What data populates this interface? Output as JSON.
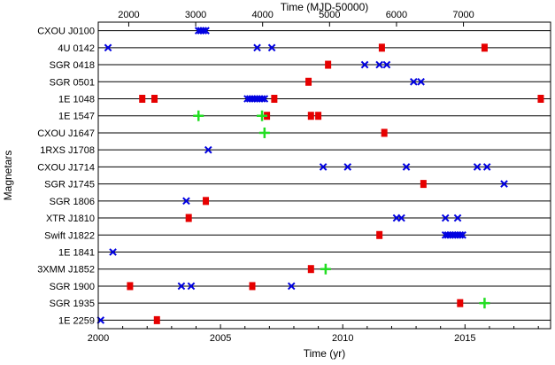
{
  "chart_data": {
    "type": "scatter",
    "xlabel": "Time (yr)",
    "x2label": "Time (MJD-50000)",
    "ylabel": "Magnetars",
    "xlim": [
      2000,
      2018.5
    ],
    "xticks": [
      2000,
      2005,
      2010,
      2015
    ],
    "x2ticks": [
      2000,
      3000,
      4000,
      5000,
      6000,
      7000
    ],
    "grid": "horizontal row lines",
    "categories": [
      "CXOU J0100",
      "4U 0142",
      "SGR 0418",
      "SGR 0501",
      "1E 1048",
      "1E 1547",
      "CXOU J1647",
      "1RXS J1708",
      "CXOU J1714",
      "SGR J1745",
      "SGR 1806",
      "XTR J1810",
      "Swift J1822",
      "1E 1841",
      "3XMM J1852",
      "SGR 1900",
      "SGR 1935",
      "1E 2259"
    ],
    "marker_styles": [
      {
        "marker": "x",
        "color": "#0000e0"
      },
      {
        "marker": "square",
        "color": "#e60000"
      },
      {
        "marker": "plus",
        "color": "#22dd22"
      }
    ],
    "series": [
      {
        "marker": "x",
        "points": [
          {
            "y": "CXOU J0100",
            "x": [
              2004.1,
              2004.2,
              2004.3,
              2004.4
            ]
          },
          {
            "y": "4U 0142",
            "x": [
              2000.4,
              2006.5,
              2007.1
            ]
          },
          {
            "y": "SGR 0418",
            "x": [
              2010.9,
              2011.5,
              2011.8
            ]
          },
          {
            "y": "SGR 0501",
            "x": [
              2012.9,
              2013.2
            ]
          },
          {
            "y": "1E 1048",
            "x": [
              2006.1,
              2006.2,
              2006.3,
              2006.4,
              2006.5,
              2006.6,
              2006.7,
              2006.8
            ]
          },
          {
            "y": "1E 1547",
            "x": []
          },
          {
            "y": "CXOU J1647",
            "x": []
          },
          {
            "y": "1RXS J1708",
            "x": [
              2004.5
            ]
          },
          {
            "y": "CXOU J1714",
            "x": [
              2009.2,
              2010.2,
              2012.6,
              2015.5,
              2015.9
            ]
          },
          {
            "y": "SGR J1745",
            "x": [
              2016.6
            ]
          },
          {
            "y": "SGR 1806",
            "x": [
              2003.6
            ]
          },
          {
            "y": "XTR J1810",
            "x": [
              2012.2,
              2012.4,
              2014.2,
              2014.7
            ]
          },
          {
            "y": "Swift J1822",
            "x": [
              2014.2,
              2014.3,
              2014.4,
              2014.5,
              2014.6,
              2014.7,
              2014.8,
              2014.9
            ]
          },
          {
            "y": "1E 1841",
            "x": [
              2000.6
            ]
          },
          {
            "y": "3XMM J1852",
            "x": []
          },
          {
            "y": "SGR 1900",
            "x": [
              2003.4,
              2003.8,
              2007.9
            ]
          },
          {
            "y": "SGR 1935",
            "x": []
          },
          {
            "y": "1E 2259",
            "x": [
              2000.1
            ]
          }
        ]
      },
      {
        "marker": "square",
        "points": [
          {
            "y": "4U 0142",
            "x": [
              2011.6,
              2015.8
            ]
          },
          {
            "y": "SGR 0418",
            "x": [
              2009.4
            ]
          },
          {
            "y": "SGR 0501",
            "x": [
              2008.6
            ]
          },
          {
            "y": "1E 1048",
            "x": [
              2001.8,
              2002.3,
              2007.2,
              2018.1
            ]
          },
          {
            "y": "1E 1547",
            "x": [
              2006.9,
              2008.7,
              2009.0
            ]
          },
          {
            "y": "CXOU J1647",
            "x": [
              2011.7
            ]
          },
          {
            "y": "SGR J1745",
            "x": [
              2013.3
            ]
          },
          {
            "y": "SGR 1806",
            "x": [
              2004.4
            ]
          },
          {
            "y": "XTR J1810",
            "x": [
              2003.7
            ]
          },
          {
            "y": "Swift J1822",
            "x": [
              2011.5
            ]
          },
          {
            "y": "3XMM J1852",
            "x": [
              2008.7
            ]
          },
          {
            "y": "SGR 1900",
            "x": [
              2001.3,
              2006.3
            ]
          },
          {
            "y": "SGR 1935",
            "x": [
              2014.8
            ]
          },
          {
            "y": "1E 2259",
            "x": [
              2002.4
            ]
          }
        ]
      },
      {
        "marker": "plus",
        "points": [
          {
            "y": "1E 1547",
            "x": [
              2004.1,
              2006.7
            ]
          },
          {
            "y": "CXOU J1647",
            "x": [
              2006.8
            ]
          },
          {
            "y": "3XMM J1852",
            "x": [
              2009.3
            ]
          },
          {
            "y": "SGR 1935",
            "x": [
              2015.8
            ]
          }
        ]
      }
    ]
  }
}
